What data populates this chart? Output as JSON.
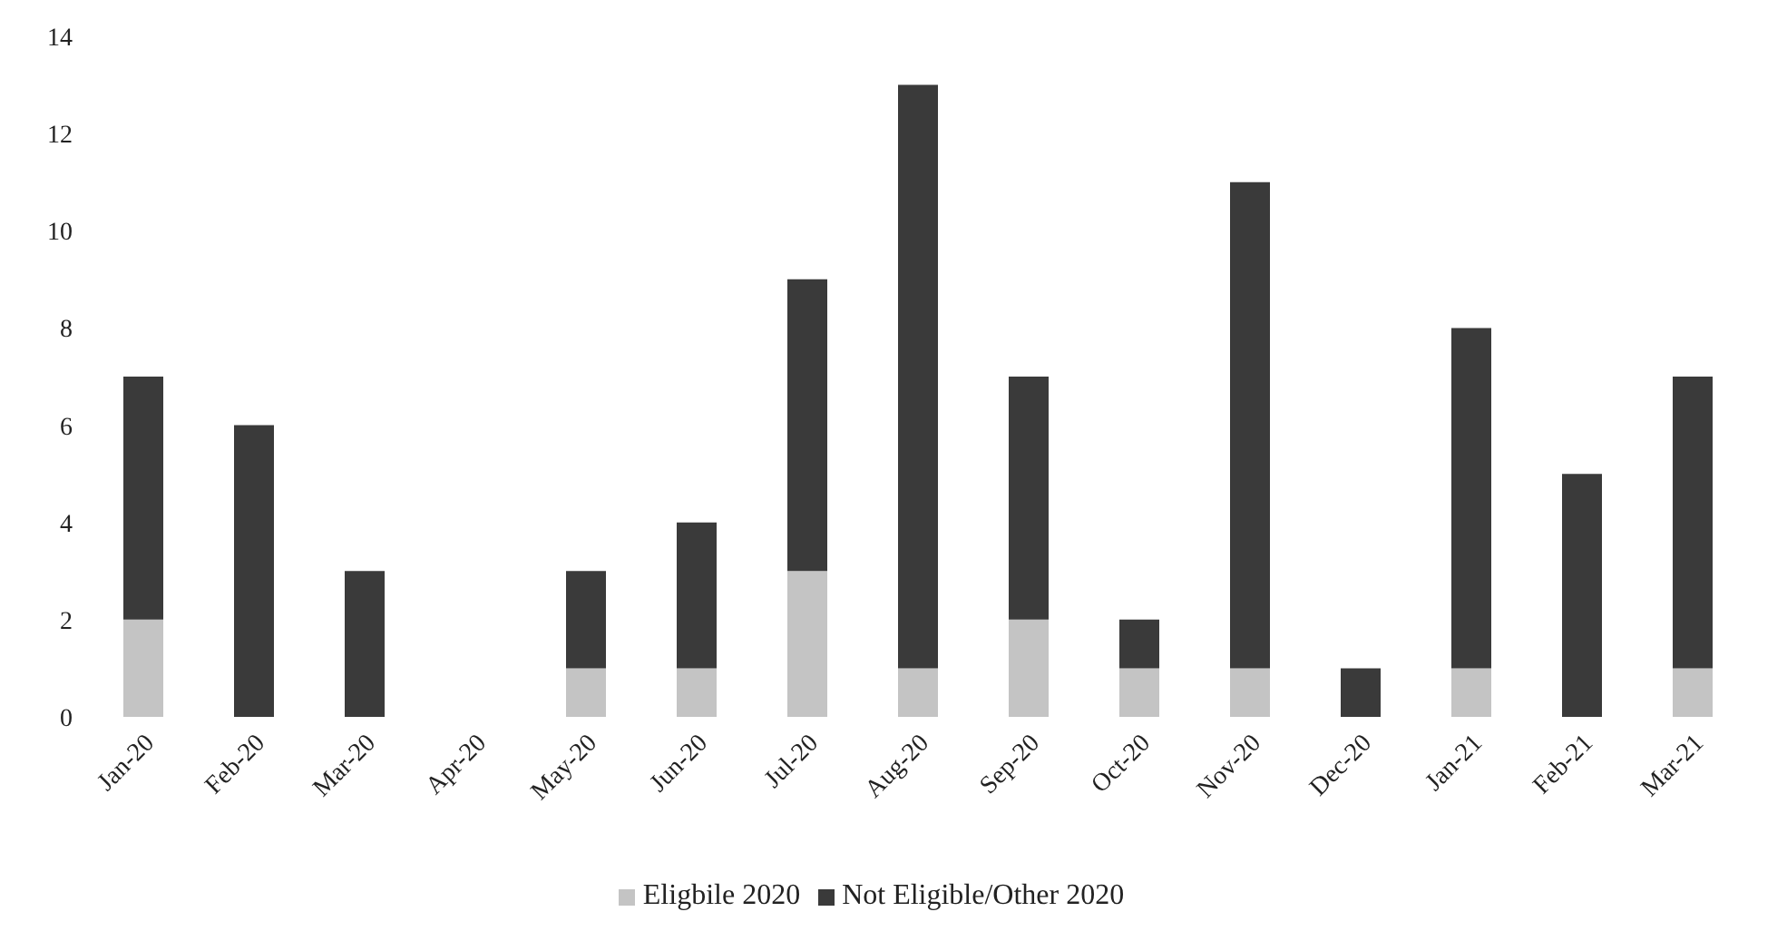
{
  "chart_data": {
    "type": "bar",
    "stacked": true,
    "categories": [
      "Jan-20",
      "Feb-20",
      "Mar-20",
      "Apr-20",
      "May-20",
      "Jun-20",
      "Jul-20",
      "Aug-20",
      "Sep-20",
      "Oct-20",
      "Nov-20",
      "Dec-20",
      "Jan-21",
      "Feb-21",
      "Mar-21"
    ],
    "series": [
      {
        "name": "Eligbile 2020",
        "color": "#c4c4c4",
        "values": [
          2,
          0,
          0,
          0,
          1,
          1,
          3,
          1,
          2,
          1,
          1,
          0,
          1,
          0,
          1
        ]
      },
      {
        "name": "Not Eligible/Other 2020",
        "color": "#3a3a3a",
        "values": [
          5,
          6,
          3,
          0,
          2,
          3,
          6,
          12,
          5,
          1,
          10,
          1,
          7,
          5,
          6
        ]
      }
    ],
    "ylim": [
      0,
      14
    ],
    "yticks": [
      0,
      2,
      4,
      6,
      8,
      10,
      12,
      14
    ],
    "grid": false,
    "legend": "bottom"
  }
}
